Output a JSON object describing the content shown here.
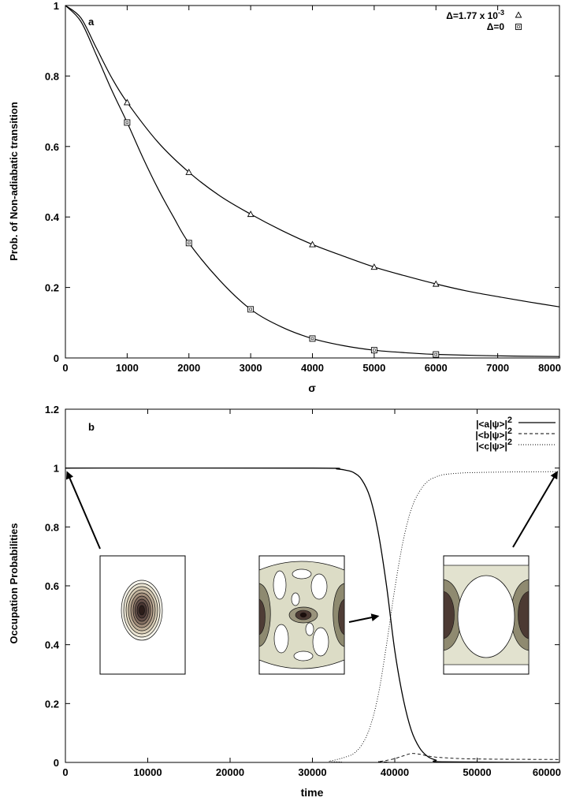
{
  "chart_data": [
    {
      "type": "line",
      "panel_label": "a",
      "xlabel": "σ",
      "ylabel": "Prob. of Non-adiabatic transition",
      "xlim": [
        0,
        8000
      ],
      "ylim": [
        0,
        1
      ],
      "xticks": [
        0,
        1000,
        2000,
        3000,
        4000,
        5000,
        6000,
        7000,
        8000
      ],
      "yticks": [
        0,
        0.2,
        0.4,
        0.6,
        0.8,
        1
      ],
      "ytick_labels": [
        "0",
        "0.2",
        "0.4",
        "0.6",
        "0.8",
        "1"
      ],
      "grid": false,
      "legend_position": "top-right",
      "legend": [
        {
          "text_main": "Δ=1.77 x 10",
          "text_sup": "-3",
          "marker": "triangle"
        },
        {
          "text_main": "Δ=0",
          "text_sup": "",
          "marker": "square"
        }
      ],
      "series": [
        {
          "marker": "triangle",
          "points": {
            "x": [
              1000,
              2000,
              3000,
              4000,
              5000,
              6000
            ],
            "y": [
              0.725,
              0.527,
              0.408,
              0.322,
              0.258,
              0.21
            ]
          },
          "curve": {
            "x": [
              0,
              250,
              500,
              750,
              1000,
              1500,
              2000,
              2500,
              3000,
              3500,
              4000,
              4500,
              5000,
              5500,
              6000,
              6500,
              7000,
              7500,
              8000
            ],
            "y": [
              1.0,
              0.965,
              0.88,
              0.795,
              0.725,
              0.612,
              0.527,
              0.46,
              0.408,
              0.362,
              0.322,
              0.289,
              0.258,
              0.233,
              0.21,
              0.19,
              0.174,
              0.159,
              0.145
            ]
          }
        },
        {
          "marker": "square",
          "points": {
            "x": [
              1000,
              2000,
              3000,
              4000,
              5000,
              6000
            ],
            "y": [
              0.668,
              0.326,
              0.138,
              0.055,
              0.022,
              0.01
            ]
          },
          "curve": {
            "x": [
              0,
              250,
              500,
              750,
              1000,
              1250,
              1500,
              1750,
              2000,
              2500,
              3000,
              3500,
              4000,
              4500,
              5000,
              5500,
              6000,
              7000,
              8000
            ],
            "y": [
              1.0,
              0.955,
              0.86,
              0.76,
              0.668,
              0.57,
              0.48,
              0.4,
              0.326,
              0.22,
              0.138,
              0.088,
              0.055,
              0.035,
              0.022,
              0.015,
              0.01,
              0.006,
              0.004
            ]
          }
        }
      ]
    },
    {
      "type": "line",
      "panel_label": "b",
      "xlabel": "time",
      "ylabel": "Occupation Probabilities",
      "xlim": [
        0,
        60000
      ],
      "ylim": [
        0,
        1.2
      ],
      "xticks": [
        0,
        10000,
        20000,
        30000,
        40000,
        50000,
        60000
      ],
      "yticks": [
        0,
        0.2,
        0.4,
        0.6,
        0.8,
        1,
        1.2
      ],
      "ytick_labels": [
        "0",
        "0.2",
        "0.4",
        "0.6",
        "0.8",
        "1",
        "1.2"
      ],
      "grid": false,
      "legend_position": "top-right",
      "legend": [
        {
          "text_main": "|<a|ψ>|",
          "text_sup": "2",
          "dash": "solid"
        },
        {
          "text_main": "|<b|ψ>|",
          "text_sup": "2",
          "dash": "dashed"
        },
        {
          "text_main": "|<c|ψ>|",
          "text_sup": "2",
          "dash": "dotted"
        }
      ],
      "series": [
        {
          "dash": "solid",
          "x": [
            0,
            30000,
            33000,
            34000,
            35000,
            36000,
            37000,
            38000,
            39000,
            40000,
            41000,
            42000,
            43000,
            44000,
            45000,
            46000,
            60000
          ],
          "y": [
            1.0,
            1.0,
            0.997,
            0.993,
            0.985,
            0.96,
            0.9,
            0.78,
            0.6,
            0.38,
            0.22,
            0.11,
            0.05,
            0.02,
            0.008,
            0.002,
            0.0
          ]
        },
        {
          "dash": "dashed",
          "x": [
            0,
            36000,
            38000,
            39000,
            40000,
            41000,
            42000,
            43000,
            44000,
            45000,
            46000,
            48000,
            52000,
            60000
          ],
          "y": [
            0.0,
            0.0,
            0.003,
            0.007,
            0.013,
            0.022,
            0.03,
            0.028,
            0.022,
            0.018,
            0.016,
            0.013,
            0.011,
            0.01
          ]
        },
        {
          "dash": "dotted",
          "x": [
            0,
            31000,
            32000,
            33000,
            34000,
            35000,
            36000,
            37000,
            38000,
            39000,
            40000,
            41000,
            42000,
            43000,
            44000,
            45000,
            46000,
            48000,
            50000,
            52000,
            55000,
            60000
          ],
          "y": [
            0.0,
            0.0,
            0.004,
            0.01,
            0.018,
            0.03,
            0.06,
            0.12,
            0.23,
            0.4,
            0.59,
            0.75,
            0.86,
            0.92,
            0.955,
            0.97,
            0.978,
            0.983,
            0.985,
            0.986,
            0.987,
            0.988
          ]
        }
      ],
      "insets": [
        {
          "pattern": "gaussian",
          "arrow_to": {
            "x": 0,
            "y": 1.0
          }
        },
        {
          "pattern": "mixed",
          "arrow_to": {
            "x": 38500,
            "y": 0.5
          }
        },
        {
          "pattern": "ring",
          "arrow_to": {
            "x": 60000,
            "y": 1.0
          }
        }
      ]
    }
  ],
  "colors": {
    "axis": "#000000",
    "contour_fill_light": "#e4e4d4",
    "contour_fill_mid": "#9d9a82",
    "contour_fill_dark": "#3c2a26",
    "background": "#ffffff"
  }
}
